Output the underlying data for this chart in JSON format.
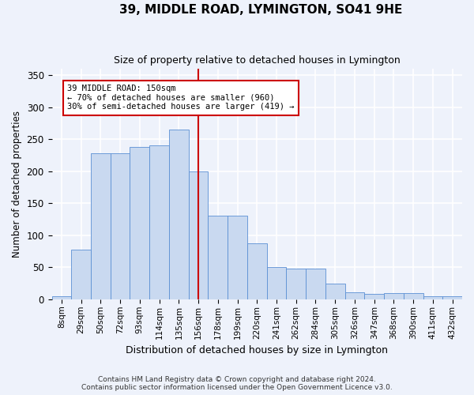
{
  "title": "39, MIDDLE ROAD, LYMINGTON, SO41 9HE",
  "subtitle": "Size of property relative to detached houses in Lymington",
  "xlabel": "Distribution of detached houses by size in Lymington",
  "ylabel": "Number of detached properties",
  "bar_color": "#c9d9f0",
  "bar_edge_color": "#5b8fd4",
  "categories": [
    "8sqm",
    "29sqm",
    "50sqm",
    "72sqm",
    "93sqm",
    "114sqm",
    "135sqm",
    "156sqm",
    "178sqm",
    "199sqm",
    "220sqm",
    "241sqm",
    "262sqm",
    "284sqm",
    "305sqm",
    "326sqm",
    "347sqm",
    "368sqm",
    "390sqm",
    "411sqm",
    "432sqm"
  ],
  "values": [
    5,
    77,
    228,
    228,
    238,
    240,
    265,
    200,
    130,
    130,
    87,
    50,
    48,
    48,
    24,
    11,
    8,
    10,
    10,
    5,
    5
  ],
  "vline_x": 7.0,
  "vline_color": "#cc0000",
  "annotation_text": "39 MIDDLE ROAD: 150sqm\n← 70% of detached houses are smaller (960)\n30% of semi-detached houses are larger (419) →",
  "annotation_box_color": "#ffffff",
  "annotation_box_edge": "#cc0000",
  "ylim": [
    0,
    360
  ],
  "yticks": [
    0,
    50,
    100,
    150,
    200,
    250,
    300,
    350
  ],
  "footer_line1": "Contains HM Land Registry data © Crown copyright and database right 2024.",
  "footer_line2": "Contains public sector information licensed under the Open Government Licence v3.0.",
  "background_color": "#eef2fb",
  "grid_color": "#ffffff"
}
